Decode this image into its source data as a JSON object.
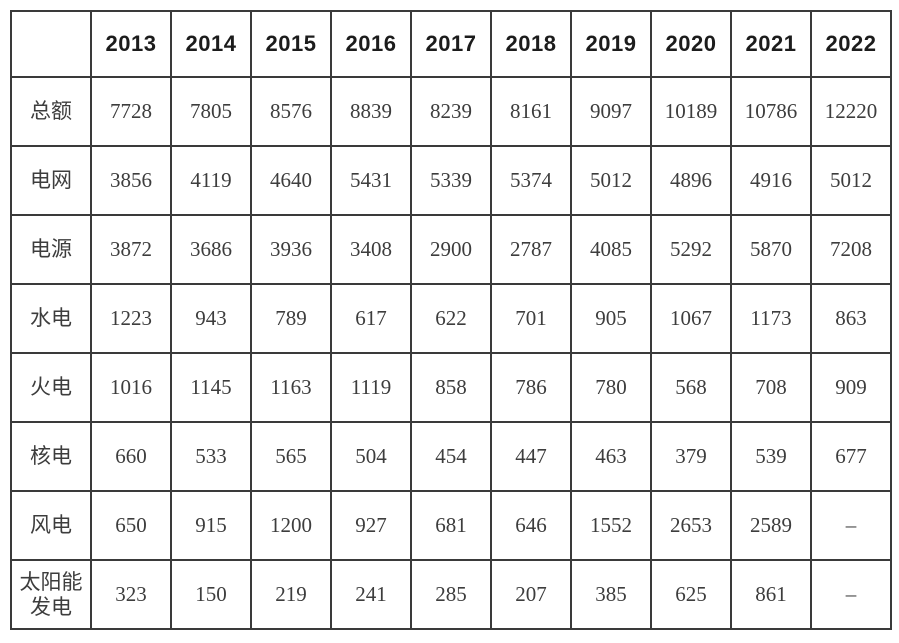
{
  "colors": {
    "border": "#3a3a3a",
    "body_text": "#3d3d3d",
    "header_text": "#1c1c1c",
    "background": "#ffffff"
  },
  "table": {
    "corner_label": "",
    "years": [
      "2013",
      "2014",
      "2015",
      "2016",
      "2017",
      "2018",
      "2019",
      "2020",
      "2021",
      "2022"
    ],
    "rows": [
      {
        "label": "总额",
        "values": [
          "7728",
          "7805",
          "8576",
          "8839",
          "8239",
          "8161",
          "9097",
          "10189",
          "10786",
          "12220"
        ]
      },
      {
        "label": "电网",
        "values": [
          "3856",
          "4119",
          "4640",
          "5431",
          "5339",
          "5374",
          "5012",
          "4896",
          "4916",
          "5012"
        ]
      },
      {
        "label": "电源",
        "values": [
          "3872",
          "3686",
          "3936",
          "3408",
          "2900",
          "2787",
          "4085",
          "5292",
          "5870",
          "7208"
        ]
      },
      {
        "label": "水电",
        "values": [
          "1223",
          "943",
          "789",
          "617",
          "622",
          "701",
          "905",
          "1067",
          "1173",
          "863"
        ]
      },
      {
        "label": "火电",
        "values": [
          "1016",
          "1145",
          "1163",
          "1119",
          "858",
          "786",
          "780",
          "568",
          "708",
          "909"
        ]
      },
      {
        "label": "核电",
        "values": [
          "660",
          "533",
          "565",
          "504",
          "454",
          "447",
          "463",
          "379",
          "539",
          "677"
        ]
      },
      {
        "label": "风电",
        "values": [
          "650",
          "915",
          "1200",
          "927",
          "681",
          "646",
          "1552",
          "2653",
          "2589",
          "–"
        ]
      },
      {
        "label": "太阳能发电",
        "values": [
          "323",
          "150",
          "219",
          "241",
          "285",
          "207",
          "385",
          "625",
          "861",
          "–"
        ]
      }
    ]
  },
  "chart_data": {
    "type": "table",
    "categories": [
      "2013",
      "2014",
      "2015",
      "2016",
      "2017",
      "2018",
      "2019",
      "2020",
      "2021",
      "2022"
    ],
    "series": [
      {
        "name": "总额",
        "values": [
          7728,
          7805,
          8576,
          8839,
          8239,
          8161,
          9097,
          10189,
          10786,
          12220
        ]
      },
      {
        "name": "电网",
        "values": [
          3856,
          4119,
          4640,
          5431,
          5339,
          5374,
          5012,
          4896,
          4916,
          5012
        ]
      },
      {
        "name": "电源",
        "values": [
          3872,
          3686,
          3936,
          3408,
          2900,
          2787,
          4085,
          5292,
          5870,
          7208
        ]
      },
      {
        "name": "水电",
        "values": [
          1223,
          943,
          789,
          617,
          622,
          701,
          905,
          1067,
          1173,
          863
        ]
      },
      {
        "name": "火电",
        "values": [
          1016,
          1145,
          1163,
          1119,
          858,
          786,
          780,
          568,
          708,
          909
        ]
      },
      {
        "name": "核电",
        "values": [
          660,
          533,
          565,
          504,
          454,
          447,
          463,
          379,
          539,
          677
        ]
      },
      {
        "name": "风电",
        "values": [
          650,
          915,
          1200,
          927,
          681,
          646,
          1552,
          2653,
          2589,
          null
        ]
      },
      {
        "name": "太阳能发电",
        "values": [
          323,
          150,
          219,
          241,
          285,
          207,
          385,
          625,
          861,
          null
        ]
      }
    ],
    "title": "",
    "xlabel": "",
    "ylabel": "",
    "missing_value_marker": "–"
  }
}
